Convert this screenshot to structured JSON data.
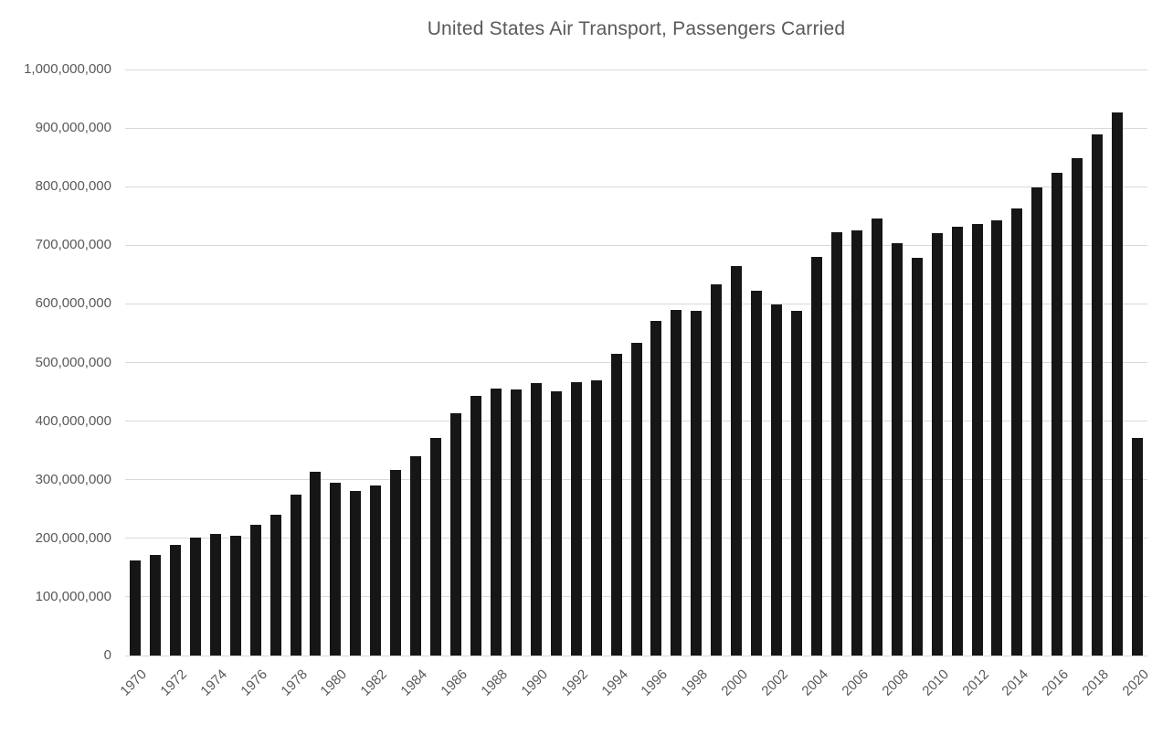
{
  "chart_data": {
    "type": "bar",
    "title": "United States Air Transport, Passengers Carried",
    "xlabel": "",
    "ylabel": "",
    "x": [
      1970,
      1971,
      1972,
      1973,
      1974,
      1975,
      1976,
      1977,
      1978,
      1979,
      1980,
      1981,
      1982,
      1983,
      1984,
      1985,
      1986,
      1987,
      1988,
      1989,
      1990,
      1991,
      1992,
      1993,
      1994,
      1995,
      1996,
      1997,
      1998,
      1999,
      2000,
      2001,
      2002,
      2003,
      2004,
      2005,
      2006,
      2007,
      2008,
      2009,
      2010,
      2011,
      2012,
      2013,
      2014,
      2015,
      2016,
      2017,
      2018,
      2019,
      2020
    ],
    "values": [
      163000000,
      172000000,
      189000000,
      201000000,
      207000000,
      204000000,
      223000000,
      240000000,
      274000000,
      314000000,
      295000000,
      281000000,
      290000000,
      316000000,
      340000000,
      372000000,
      414000000,
      443000000,
      456000000,
      454000000,
      465000000,
      451000000,
      467000000,
      470000000,
      515000000,
      533000000,
      571000000,
      590000000,
      588000000,
      634000000,
      665000000,
      623000000,
      599000000,
      588000000,
      680000000,
      722000000,
      725000000,
      745000000,
      703000000,
      679000000,
      721000000,
      731000000,
      737000000,
      743000000,
      763000000,
      798000000,
      823000000,
      849000000,
      889000000,
      927000000,
      371000000
    ],
    "x_tick_labels": [
      "1970",
      "1972",
      "1974",
      "1976",
      "1978",
      "1980",
      "1982",
      "1984",
      "1986",
      "1988",
      "1990",
      "1992",
      "1994",
      "1996",
      "1998",
      "2000",
      "2002",
      "2004",
      "2006",
      "2008",
      "2010",
      "2012",
      "2014",
      "2016",
      "2018",
      "2020"
    ],
    "y_tick_labels": [
      "0",
      "100,000,000",
      "200,000,000",
      "300,000,000",
      "400,000,000",
      "500,000,000",
      "600,000,000",
      "700,000,000",
      "800,000,000",
      "900,000,000",
      "1,000,000,000"
    ],
    "ylim": [
      0,
      1000000000
    ],
    "grid": true,
    "legend": false,
    "colors": {
      "bar": "#161616",
      "gridline": "#d9d9d9",
      "axis_text": "#595959",
      "title_text": "#595959",
      "background": "#ffffff"
    }
  }
}
